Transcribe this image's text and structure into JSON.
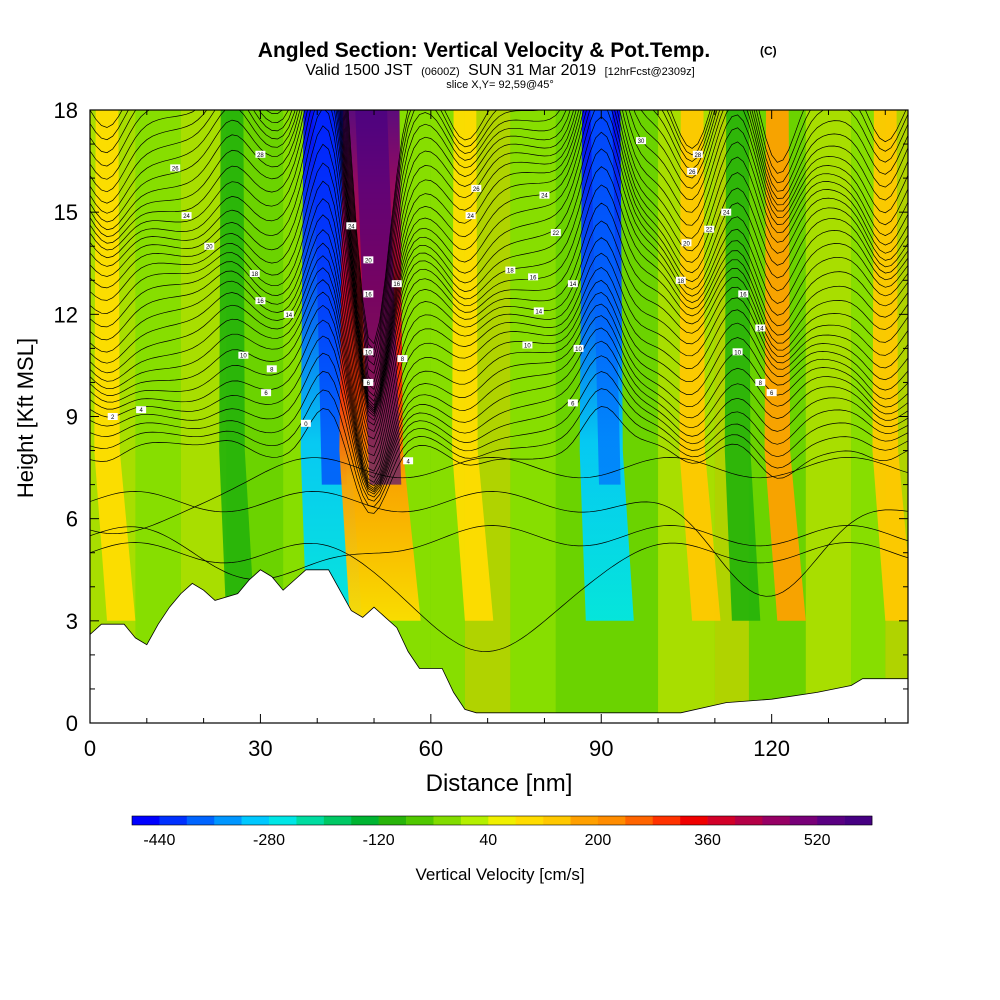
{
  "chart_data": {
    "type": "heatmap",
    "title": "Angled Section: Vertical Velocity & Pot.Temp.",
    "title_units": "(C)",
    "subtitle_lead": "Valid 1500 JST",
    "subtitle_zulu": "(0600Z)",
    "subtitle_date": "SUN 31 Mar 2019",
    "subtitle_forecast": "[12hrFcst@2309z]",
    "slice_text": "slice X,Y= 92,59@45°",
    "xlabel": "Distance [nm]",
    "ylabel": "Height [Kft MSL]",
    "xlim": [
      0,
      144
    ],
    "ylim": [
      0,
      18
    ],
    "x_ticks": [
      0,
      30,
      60,
      90,
      120
    ],
    "y_ticks": [
      0,
      3,
      6,
      9,
      12,
      15,
      18
    ],
    "colorbar": {
      "label": "Vertical Velocity [cm/s]",
      "min": -480,
      "max": 600,
      "step": 40,
      "tick_labels": [
        "-440",
        "-280",
        "-120",
        "40",
        "200",
        "360",
        "520"
      ],
      "colors": [
        "#0000ff",
        "#0030ff",
        "#0064ff",
        "#0096ff",
        "#00c8ff",
        "#00e6e6",
        "#00dca0",
        "#00c864",
        "#00b432",
        "#28b40a",
        "#50c800",
        "#82dc00",
        "#b4f000",
        "#f0f000",
        "#ffdc00",
        "#ffc800",
        "#ffa000",
        "#ff8c00",
        "#ff6400",
        "#ff3200",
        "#f00000",
        "#d20028",
        "#b40046",
        "#960064",
        "#780078",
        "#5a0082",
        "#460082"
      ]
    },
    "updrafts": [
      {
        "x": 49.5,
        "peak": 560
      },
      {
        "x": 106,
        "peak": 140
      },
      {
        "x": 121,
        "peak": 160
      },
      {
        "x": 3,
        "peak": 110
      },
      {
        "x": 66,
        "peak": 110
      },
      {
        "x": 140,
        "peak": 140
      }
    ],
    "downdrafts": [
      {
        "x": 41.5,
        "peak": -440
      },
      {
        "x": 90,
        "peak": -380
      },
      {
        "x": 114,
        "peak": -120
      },
      {
        "x": 25,
        "peak": -120
      }
    ],
    "terrain": [
      [
        0,
        2.6
      ],
      [
        2,
        2.9
      ],
      [
        6,
        2.9
      ],
      [
        8,
        2.5
      ],
      [
        10,
        2.3
      ],
      [
        12,
        2.9
      ],
      [
        14,
        3.4
      ],
      [
        16,
        3.8
      ],
      [
        18,
        4.1
      ],
      [
        20,
        3.9
      ],
      [
        22,
        3.6
      ],
      [
        26,
        3.8
      ],
      [
        28,
        4.2
      ],
      [
        30,
        4.5
      ],
      [
        32,
        4.3
      ],
      [
        34,
        3.9
      ],
      [
        36,
        4.2
      ],
      [
        38,
        4.5
      ],
      [
        42,
        4.5
      ],
      [
        44,
        3.9
      ],
      [
        46,
        3.3
      ],
      [
        48,
        3.1
      ],
      [
        50,
        3.4
      ],
      [
        52,
        3.1
      ],
      [
        54,
        2.8
      ],
      [
        56,
        2.1
      ],
      [
        58,
        1.6
      ],
      [
        62,
        1.6
      ],
      [
        64,
        0.9
      ],
      [
        66,
        0.4
      ],
      [
        68,
        0.3
      ],
      [
        96,
        0.3
      ],
      [
        104,
        0.3
      ],
      [
        112,
        0.6
      ],
      [
        120,
        0.7
      ],
      [
        128,
        0.9
      ],
      [
        134,
        1.1
      ],
      [
        136,
        1.3
      ],
      [
        144,
        1.3
      ]
    ],
    "theta_contour_labels": [
      {
        "x": 15,
        "y": 16.3,
        "text": "26"
      },
      {
        "x": 30,
        "y": 16.7,
        "text": "28"
      },
      {
        "x": 17,
        "y": 14.9,
        "text": "24"
      },
      {
        "x": 21,
        "y": 14.0,
        "text": "20"
      },
      {
        "x": 29,
        "y": 13.2,
        "text": "18"
      },
      {
        "x": 30,
        "y": 12.4,
        "text": "16"
      },
      {
        "x": 35,
        "y": 12.0,
        "text": "14"
      },
      {
        "x": 27,
        "y": 10.8,
        "text": "10"
      },
      {
        "x": 32,
        "y": 10.4,
        "text": "8"
      },
      {
        "x": 31,
        "y": 9.7,
        "text": "6"
      },
      {
        "x": 9,
        "y": 9.2,
        "text": "4"
      },
      {
        "x": 4,
        "y": 9.0,
        "text": "2"
      },
      {
        "x": 38,
        "y": 8.8,
        "text": "0"
      },
      {
        "x": 46,
        "y": 14.6,
        "text": "24"
      },
      {
        "x": 49,
        "y": 13.6,
        "text": "20"
      },
      {
        "x": 49,
        "y": 12.6,
        "text": "16"
      },
      {
        "x": 49,
        "y": 10.9,
        "text": "10"
      },
      {
        "x": 49,
        "y": 10.0,
        "text": "6"
      },
      {
        "x": 54,
        "y": 12.9,
        "text": "16"
      },
      {
        "x": 55,
        "y": 10.7,
        "text": "8"
      },
      {
        "x": 56,
        "y": 7.7,
        "text": "4"
      },
      {
        "x": 68,
        "y": 15.7,
        "text": "26"
      },
      {
        "x": 67,
        "y": 14.9,
        "text": "24"
      },
      {
        "x": 80,
        "y": 15.5,
        "text": "24"
      },
      {
        "x": 82,
        "y": 14.4,
        "text": "22"
      },
      {
        "x": 74,
        "y": 13.3,
        "text": "18"
      },
      {
        "x": 78,
        "y": 13.1,
        "text": "16"
      },
      {
        "x": 79,
        "y": 12.1,
        "text": "14"
      },
      {
        "x": 77,
        "y": 11.1,
        "text": "10"
      },
      {
        "x": 85,
        "y": 12.9,
        "text": "14"
      },
      {
        "x": 86,
        "y": 11.0,
        "text": "10"
      },
      {
        "x": 85,
        "y": 9.4,
        "text": "6"
      },
      {
        "x": 97,
        "y": 17.1,
        "text": "30"
      },
      {
        "x": 107,
        "y": 16.7,
        "text": "28"
      },
      {
        "x": 106,
        "y": 16.2,
        "text": "26"
      },
      {
        "x": 112,
        "y": 15.0,
        "text": "24"
      },
      {
        "x": 109,
        "y": 14.5,
        "text": "22"
      },
      {
        "x": 105,
        "y": 14.1,
        "text": "20"
      },
      {
        "x": 104,
        "y": 13.0,
        "text": "18"
      },
      {
        "x": 115,
        "y": 12.6,
        "text": "16"
      },
      {
        "x": 118,
        "y": 11.6,
        "text": "14"
      },
      {
        "x": 114,
        "y": 10.9,
        "text": "10"
      },
      {
        "x": 118,
        "y": 10.0,
        "text": "8"
      },
      {
        "x": 120,
        "y": 9.7,
        "text": "6"
      }
    ]
  }
}
